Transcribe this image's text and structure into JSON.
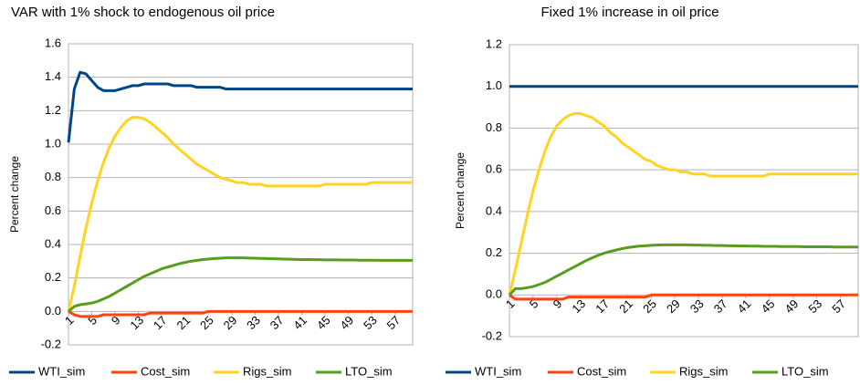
{
  "chart_data": [
    {
      "type": "line",
      "title": "VAR with 1% shock to endogenous oil price",
      "y_label": "Percent change",
      "x": [
        1,
        2,
        3,
        4,
        5,
        6,
        7,
        8,
        9,
        10,
        11,
        12,
        13,
        14,
        15,
        16,
        17,
        18,
        19,
        20,
        21,
        22,
        23,
        24,
        25,
        26,
        27,
        28,
        29,
        30,
        31,
        32,
        33,
        34,
        35,
        36,
        37,
        38,
        39,
        40,
        41,
        42,
        43,
        44,
        45,
        46,
        47,
        48,
        49,
        50,
        51,
        52,
        53,
        54,
        55,
        56,
        57,
        58,
        59,
        60
      ],
      "xlim": [
        1,
        60
      ],
      "xticks": [
        1,
        5,
        9,
        13,
        17,
        21,
        25,
        29,
        33,
        37,
        41,
        45,
        49,
        53,
        57
      ],
      "ylim": [
        -0.2,
        1.6
      ],
      "yticks": [
        1.6,
        1.4,
        1.2,
        {
          "value": 1,
          "label": "1.0"
        },
        0.8,
        0.6,
        0.4,
        0.2,
        {
          "value": 0,
          "label": "0.0"
        },
        -0.2
      ],
      "grid": true,
      "legend": "bottom",
      "series": [
        {
          "name": "WTI_sim",
          "color": "#004586",
          "values": [
            1.01,
            1.33,
            1.43,
            1.42,
            1.38,
            1.34,
            1.32,
            1.32,
            1.32,
            1.33,
            1.34,
            1.35,
            1.35,
            1.36,
            1.36,
            1.36,
            1.36,
            1.36,
            1.35,
            1.35,
            1.35,
            1.35,
            1.34,
            1.34,
            1.34,
            1.34,
            1.34,
            1.33,
            1.33,
            1.33,
            1.33,
            1.33,
            1.33,
            1.33,
            1.33,
            1.33,
            1.33,
            1.33,
            1.33,
            1.33,
            1.33,
            1.33,
            1.33,
            1.33,
            1.33,
            1.33,
            1.33,
            1.33,
            1.33,
            1.33,
            1.33,
            1.33,
            1.33,
            1.33,
            1.33,
            1.33,
            1.33,
            1.33,
            1.33,
            1.33
          ]
        },
        {
          "name": "Cost_sim",
          "color": "#ff420e",
          "values": [
            0,
            -0.02,
            -0.03,
            -0.03,
            -0.03,
            -0.03,
            -0.02,
            -0.02,
            -0.02,
            -0.02,
            -0.02,
            -0.02,
            -0.02,
            -0.02,
            -0.01,
            -0.01,
            -0.01,
            -0.01,
            -0.01,
            -0.01,
            -0.01,
            -0.01,
            -0.01,
            -0.01,
            0,
            0,
            0,
            0,
            0,
            0,
            0,
            0,
            0,
            0,
            0,
            0,
            0,
            0,
            0,
            0,
            0,
            0,
            0,
            0,
            0,
            0,
            0,
            0,
            0,
            0,
            0,
            0,
            0,
            0,
            0,
            0,
            0,
            0,
            0,
            0
          ]
        },
        {
          "name": "Rigs_sim",
          "color": "#ffd320",
          "values": [
            0,
            0.15,
            0.33,
            0.5,
            0.65,
            0.78,
            0.89,
            0.98,
            1.05,
            1.1,
            1.14,
            1.16,
            1.16,
            1.15,
            1.13,
            1.1,
            1.07,
            1.04,
            1.0,
            0.97,
            0.94,
            0.91,
            0.88,
            0.86,
            0.84,
            0.82,
            0.8,
            0.79,
            0.78,
            0.77,
            0.77,
            0.76,
            0.76,
            0.76,
            0.75,
            0.75,
            0.75,
            0.75,
            0.75,
            0.75,
            0.75,
            0.75,
            0.75,
            0.75,
            0.76,
            0.76,
            0.76,
            0.76,
            0.76,
            0.76,
            0.76,
            0.76,
            0.77,
            0.77,
            0.77,
            0.77,
            0.77,
            0.77,
            0.77,
            0.77
          ]
        },
        {
          "name": "LTO_sim",
          "color": "#579d1c",
          "values": [
            0,
            0.03,
            0.04,
            0.045,
            0.05,
            0.06,
            0.075,
            0.09,
            0.11,
            0.13,
            0.15,
            0.17,
            0.19,
            0.21,
            0.225,
            0.24,
            0.255,
            0.265,
            0.275,
            0.285,
            0.293,
            0.3,
            0.305,
            0.31,
            0.313,
            0.316,
            0.318,
            0.32,
            0.32,
            0.32,
            0.32,
            0.319,
            0.318,
            0.317,
            0.316,
            0.315,
            0.314,
            0.313,
            0.312,
            0.311,
            0.31,
            0.31,
            0.309,
            0.309,
            0.308,
            0.308,
            0.308,
            0.307,
            0.307,
            0.307,
            0.306,
            0.306,
            0.306,
            0.306,
            0.305,
            0.305,
            0.305,
            0.305,
            0.305,
            0.305
          ]
        }
      ]
    },
    {
      "type": "line",
      "title": "Fixed 1% increase in oil price",
      "y_label": "Percent change",
      "x": [
        1,
        2,
        3,
        4,
        5,
        6,
        7,
        8,
        9,
        10,
        11,
        12,
        13,
        14,
        15,
        16,
        17,
        18,
        19,
        20,
        21,
        22,
        23,
        24,
        25,
        26,
        27,
        28,
        29,
        30,
        31,
        32,
        33,
        34,
        35,
        36,
        37,
        38,
        39,
        40,
        41,
        42,
        43,
        44,
        45,
        46,
        47,
        48,
        49,
        50,
        51,
        52,
        53,
        54,
        55,
        56,
        57,
        58,
        59,
        60
      ],
      "xlim": [
        1,
        60
      ],
      "xticks": [
        1,
        5,
        9,
        13,
        17,
        21,
        25,
        29,
        33,
        37,
        41,
        45,
        49,
        53,
        57
      ],
      "ylim": [
        -0.2,
        1.2
      ],
      "yticks": [
        1.2,
        {
          "value": 1,
          "label": "1.0"
        },
        0.8,
        0.6,
        0.4,
        0.2,
        {
          "value": 0,
          "label": "0.0"
        },
        -0.2
      ],
      "grid": true,
      "legend": "bottom",
      "series": [
        {
          "name": "WTI_sim",
          "color": "#004586",
          "values": [
            1,
            1,
            1,
            1,
            1,
            1,
            1,
            1,
            1,
            1,
            1,
            1,
            1,
            1,
            1,
            1,
            1,
            1,
            1,
            1,
            1,
            1,
            1,
            1,
            1,
            1,
            1,
            1,
            1,
            1,
            1,
            1,
            1,
            1,
            1,
            1,
            1,
            1,
            1,
            1,
            1,
            1,
            1,
            1,
            1,
            1,
            1,
            1,
            1,
            1,
            1,
            1,
            1,
            1,
            1,
            1,
            1,
            1,
            1,
            1
          ]
        },
        {
          "name": "Cost_sim",
          "color": "#ff420e",
          "values": [
            0,
            -0.02,
            -0.02,
            -0.02,
            -0.02,
            -0.02,
            -0.02,
            -0.02,
            -0.02,
            -0.02,
            -0.01,
            -0.01,
            -0.01,
            -0.01,
            -0.01,
            -0.01,
            -0.01,
            -0.01,
            -0.01,
            -0.01,
            -0.01,
            -0.01,
            -0.01,
            -0.01,
            0,
            0,
            0,
            0,
            0,
            0,
            0,
            0,
            0,
            0,
            0,
            0,
            0,
            0,
            0,
            0,
            0,
            0,
            0,
            0,
            0,
            0,
            0,
            0,
            0,
            0,
            0,
            0,
            0,
            0,
            0,
            0,
            0,
            0,
            0,
            0
          ]
        },
        {
          "name": "Rigs_sim",
          "color": "#ffd320",
          "values": [
            0,
            0.12,
            0.25,
            0.38,
            0.5,
            0.6,
            0.69,
            0.76,
            0.81,
            0.84,
            0.86,
            0.87,
            0.87,
            0.86,
            0.85,
            0.83,
            0.81,
            0.78,
            0.76,
            0.73,
            0.71,
            0.69,
            0.67,
            0.65,
            0.64,
            0.62,
            0.61,
            0.6,
            0.6,
            0.59,
            0.59,
            0.58,
            0.58,
            0.58,
            0.57,
            0.57,
            0.57,
            0.57,
            0.57,
            0.57,
            0.57,
            0.57,
            0.57,
            0.57,
            0.58,
            0.58,
            0.58,
            0.58,
            0.58,
            0.58,
            0.58,
            0.58,
            0.58,
            0.58,
            0.58,
            0.58,
            0.58,
            0.58,
            0.58,
            0.58
          ]
        },
        {
          "name": "LTO_sim",
          "color": "#579d1c",
          "values": [
            0,
            0.03,
            0.03,
            0.035,
            0.04,
            0.05,
            0.06,
            0.075,
            0.09,
            0.105,
            0.12,
            0.135,
            0.15,
            0.165,
            0.178,
            0.19,
            0.2,
            0.208,
            0.215,
            0.222,
            0.227,
            0.231,
            0.234,
            0.236,
            0.238,
            0.239,
            0.24,
            0.24,
            0.24,
            0.24,
            0.24,
            0.239,
            0.239,
            0.238,
            0.238,
            0.237,
            0.237,
            0.236,
            0.236,
            0.235,
            0.235,
            0.234,
            0.234,
            0.233,
            0.233,
            0.233,
            0.232,
            0.232,
            0.232,
            0.232,
            0.231,
            0.231,
            0.231,
            0.231,
            0.231,
            0.23,
            0.23,
            0.23,
            0.23,
            0.23
          ]
        }
      ]
    }
  ]
}
